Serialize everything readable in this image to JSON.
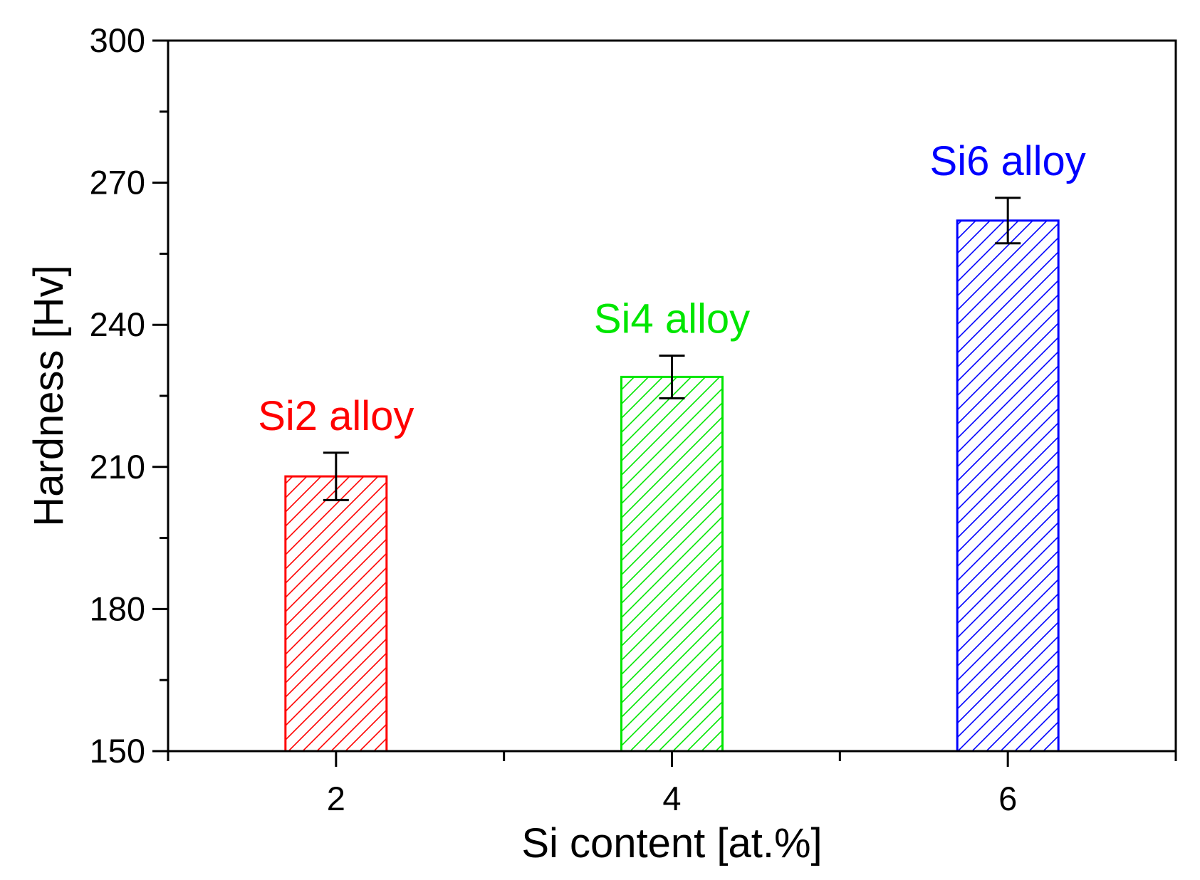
{
  "chart_data": {
    "type": "bar",
    "title": "",
    "xlabel": "Si content [at.%]",
    "ylabel": "Hardness [Hv]",
    "categories": [
      "2",
      "4",
      "6"
    ],
    "x": [
      2,
      4,
      6
    ],
    "values": [
      208,
      229,
      262
    ],
    "errors": [
      5,
      4.5,
      4.8
    ],
    "bar_labels": [
      "Si2 alloy",
      "Si4 alloy",
      "Si6 alloy"
    ],
    "colors": [
      "#ff0000",
      "#00e600",
      "#0000ff"
    ],
    "ylim": [
      150,
      300
    ],
    "xlim": [
      1,
      7
    ],
    "yticks_major": [
      150,
      180,
      210,
      240,
      270,
      300
    ],
    "yticks_minor": [
      165,
      195,
      225,
      255,
      285
    ],
    "xticks_major": [
      2,
      4,
      6
    ],
    "xticks_minor": [
      3,
      5
    ],
    "grid": false,
    "legend": "none",
    "fill_pattern": "diagonal-hatch"
  }
}
